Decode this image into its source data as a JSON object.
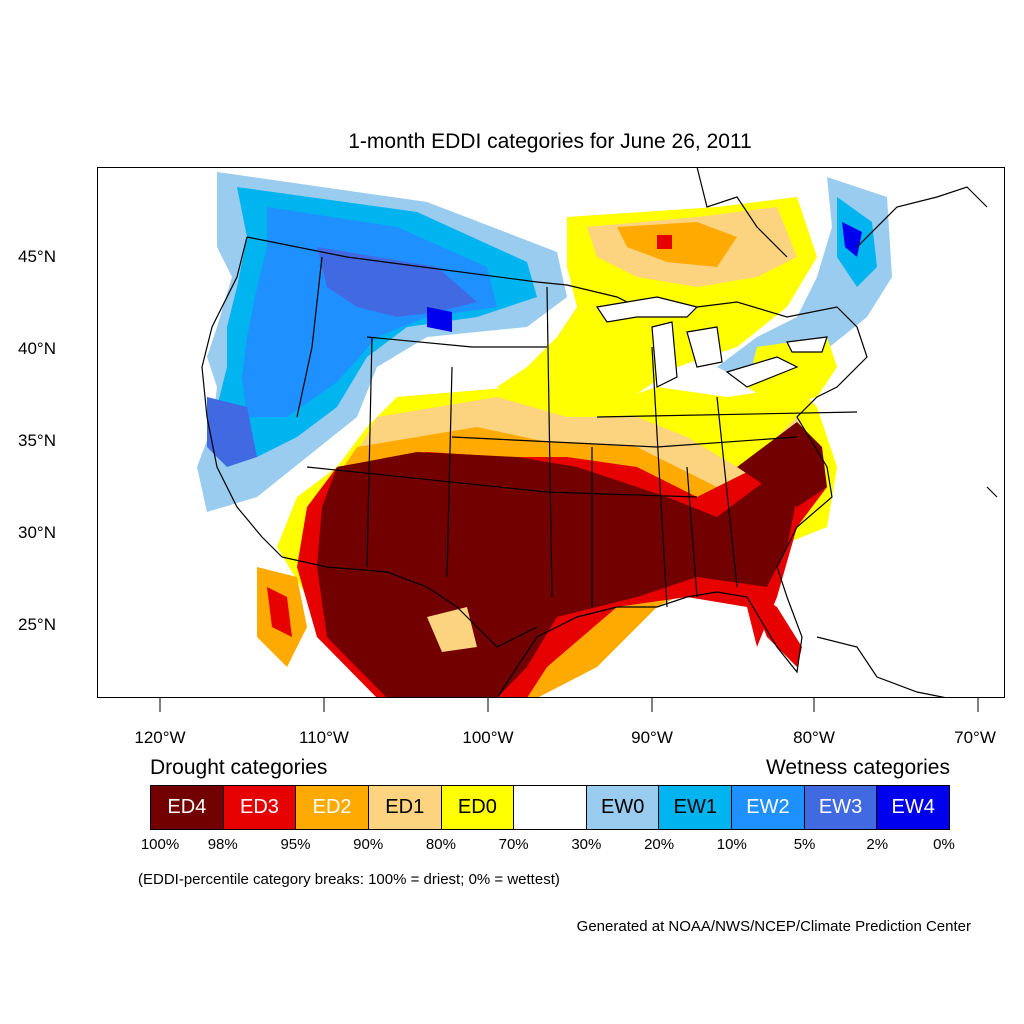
{
  "map": {
    "title": "1-month EDDI categories for June 26, 2011",
    "lat_labels": [
      "45°N",
      "40°N",
      "35°N",
      "30°N",
      "25°N"
    ],
    "lon_labels": [
      "120°W",
      "110°W",
      "100°W",
      "90°W",
      "80°W",
      "70°W"
    ]
  },
  "legend": {
    "drought_heading": "Drought categories",
    "wetness_heading": "Wetness categories",
    "categories": [
      {
        "label": "ED4",
        "color": "#730000",
        "text_color": "#ffffff"
      },
      {
        "label": "ED3",
        "color": "#e60000",
        "text_color": "#ffffff"
      },
      {
        "label": "ED2",
        "color": "#ffaa00",
        "text_color": "#ffffff"
      },
      {
        "label": "ED1",
        "color": "#fcd37f",
        "text_color": "#000000"
      },
      {
        "label": "ED0",
        "color": "#ffff00",
        "text_color": "#000000"
      },
      {
        "label": "",
        "color": "#ffffff",
        "text_color": "#000000"
      },
      {
        "label": "EW0",
        "color": "#99ccee",
        "text_color": "#000000"
      },
      {
        "label": "EW1",
        "color": "#00b4f0",
        "text_color": "#000000"
      },
      {
        "label": "EW2",
        "color": "#1e90ff",
        "text_color": "#ffffff"
      },
      {
        "label": "EW3",
        "color": "#4169e1",
        "text_color": "#ffffff"
      },
      {
        "label": "EW4",
        "color": "#0000ee",
        "text_color": "#ffffff"
      }
    ],
    "breaks": [
      "100%",
      "98%",
      "95%",
      "90%",
      "80%",
      "70%",
      "30%",
      "20%",
      "10%",
      "5%",
      "2%",
      "0%"
    ],
    "note": "(EDDI-percentile category breaks: 100% = driest; 0% = wettest)"
  },
  "credit": "Generated at NOAA/NWS/NCEP/Climate Prediction Center"
}
